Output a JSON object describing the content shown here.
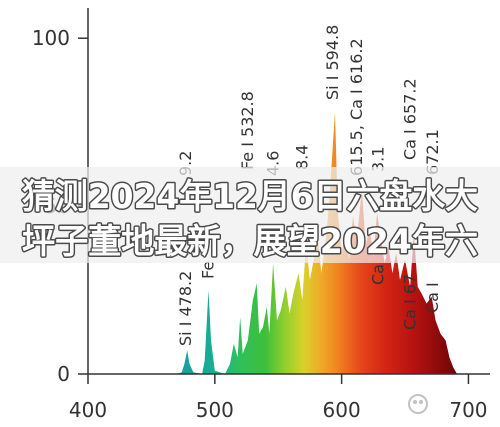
{
  "chart_data": {
    "type": "area",
    "title": "",
    "xlabel": "",
    "ylabel": "",
    "xlim": [
      400,
      717
    ],
    "ylim": [
      0,
      109
    ],
    "x_ticks": [
      400,
      500,
      600,
      700
    ],
    "y_ticks": [
      0,
      50,
      100
    ],
    "grid": false,
    "series": [
      {
        "points": [
          [
            470,
            0
          ],
          [
            474,
            0.5
          ],
          [
            476,
            3
          ],
          [
            478.2,
            7
          ],
          [
            480,
            3
          ],
          [
            483,
            0.5
          ],
          [
            490,
            0
          ],
          [
            492,
            4
          ],
          [
            495,
            25
          ],
          [
            497,
            10
          ],
          [
            500,
            1
          ],
          [
            508,
            0
          ],
          [
            512,
            3
          ],
          [
            515,
            9
          ],
          [
            518,
            5
          ],
          [
            520,
            17
          ],
          [
            522,
            6
          ],
          [
            526,
            10
          ],
          [
            530,
            22
          ],
          [
            533,
            27
          ],
          [
            535,
            12
          ],
          [
            538,
            14
          ],
          [
            541,
            20
          ],
          [
            543,
            12
          ],
          [
            546,
            33
          ],
          [
            549,
            16
          ],
          [
            552,
            19
          ],
          [
            556,
            26
          ],
          [
            559,
            18
          ],
          [
            562,
            24
          ],
          [
            566,
            30
          ],
          [
            569,
            22
          ],
          [
            572,
            39
          ],
          [
            575,
            28
          ],
          [
            578,
            34
          ],
          [
            581,
            42
          ],
          [
            584,
            30
          ],
          [
            587,
            38
          ],
          [
            590,
            50
          ],
          [
            592,
            62
          ],
          [
            594.8,
            78
          ],
          [
            597,
            48
          ],
          [
            600,
            36
          ],
          [
            603,
            42
          ],
          [
            606,
            34
          ],
          [
            609,
            47
          ],
          [
            612,
            40
          ],
          [
            616,
            55
          ],
          [
            619,
            38
          ],
          [
            622,
            44
          ],
          [
            625,
            35
          ],
          [
            628,
            48
          ],
          [
            631,
            40
          ],
          [
            634,
            33
          ],
          [
            637,
            38
          ],
          [
            640,
            30
          ],
          [
            643,
            36
          ],
          [
            646,
            28
          ],
          [
            650,
            34
          ],
          [
            654,
            26
          ],
          [
            657,
            42
          ],
          [
            660,
            26
          ],
          [
            663,
            24
          ],
          [
            667,
            21
          ],
          [
            671,
            23
          ],
          [
            674,
            16
          ],
          [
            678,
            12
          ],
          [
            682,
            10
          ],
          [
            685,
            5
          ],
          [
            688,
            2
          ],
          [
            691,
            0
          ]
        ]
      }
    ],
    "fill_colors": [
      {
        "x": 470,
        "color": "#1c9e9e"
      },
      {
        "x": 490,
        "color": "#12a89a"
      },
      {
        "x": 505,
        "color": "#1fb58a"
      },
      {
        "x": 520,
        "color": "#2fbf5a"
      },
      {
        "x": 540,
        "color": "#3fbf3a"
      },
      {
        "x": 555,
        "color": "#8fcf2e"
      },
      {
        "x": 570,
        "color": "#d9d12a"
      },
      {
        "x": 585,
        "color": "#f0a628"
      },
      {
        "x": 600,
        "color": "#ef7a1e"
      },
      {
        "x": 615,
        "color": "#e5461a"
      },
      {
        "x": 635,
        "color": "#d42414"
      },
      {
        "x": 660,
        "color": "#b01010"
      },
      {
        "x": 690,
        "color": "#6e0606"
      }
    ],
    "peak_labels": [
      {
        "text": "Si I 478.2",
        "x": 478
      },
      {
        "text": "9.2",
        "x": 478
      },
      {
        "text": "Fe",
        "x": 496
      },
      {
        "text": "Fe I 532.8",
        "x": 527
      },
      {
        "text": "4.6",
        "x": 547
      },
      {
        "text": "8.4",
        "x": 570
      },
      {
        "text": "Si I 594.8",
        "x": 594
      },
      {
        "text": "615.5, Ca I 616.2",
        "x": 613
      },
      {
        "text": "3.1",
        "x": 630
      },
      {
        "text": "Ca",
        "x": 630
      },
      {
        "text": "Ca I 657.2",
        "x": 655
      },
      {
        "text": "Ca I 67",
        "x": 655
      },
      {
        "text": "672.1",
        "x": 673
      },
      {
        "text": "Ca I",
        "x": 673
      }
    ]
  },
  "banner": {
    "line1": "猜测2024年12月6日六盘水大",
    "line2": "坪子董地最新，展望2024年六"
  },
  "colors": {
    "axis": "#333333",
    "banner_fill": "#eeeeee",
    "banner_text": "#ffffff"
  },
  "watermark": {
    "icon": "watermark-logo-icon"
  }
}
